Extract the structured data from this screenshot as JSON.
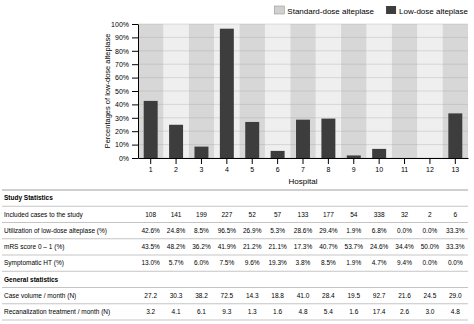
{
  "chart_data": {
    "type": "bar",
    "xlabel": "Hospital",
    "ylabel": "Percentages of low-dose alteplase",
    "categories": [
      "1",
      "2",
      "3",
      "4",
      "5",
      "6",
      "7",
      "8",
      "9",
      "10",
      "11",
      "12",
      "13"
    ],
    "series": [
      {
        "name": "Standard-dose alteplase",
        "color": "#d0d0d0",
        "type": "background"
      },
      {
        "name": "Low-dose alteplase",
        "color": "#3d3d3d",
        "values": [
          42.6,
          24.8,
          8.5,
          96.5,
          26.9,
          5.3,
          28.6,
          29.4,
          1.9,
          6.8,
          0.0,
          0.0,
          33.3
        ]
      }
    ],
    "ylim": [
      0,
      100
    ],
    "yticks": [
      {
        "value": 0,
        "label": "0%"
      },
      {
        "value": 10,
        "label": "10%"
      },
      {
        "value": 20,
        "label": "20%"
      },
      {
        "value": 30,
        "label": "30%"
      },
      {
        "value": 40,
        "label": "40%"
      },
      {
        "value": 50,
        "label": "50%"
      },
      {
        "value": 60,
        "label": "60%"
      },
      {
        "value": 70,
        "label": "70%"
      },
      {
        "value": 80,
        "label": "80%"
      },
      {
        "value": 90,
        "label": "90%"
      },
      {
        "value": 100,
        "label": "100%"
      }
    ],
    "grid": true,
    "legend": "upper right",
    "table": [
      {
        "title": "Study Statistics",
        "rows": [
          {
            "label": "Included cases to the study",
            "values": [
              "108",
              "141",
              "199",
              "227",
              "52",
              "57",
              "133",
              "177",
              "54",
              "338",
              "32",
              "2",
              "6"
            ]
          },
          {
            "label": "Utilization of low-dose alteplase (%)",
            "values": [
              "42.6%",
              "24.8%",
              "8.5%",
              "96.5%",
              "26.9%",
              "5.3%",
              "28.6%",
              "29.4%",
              "1.9%",
              "6.8%",
              "0.0%",
              "0.0%",
              "33.3%"
            ]
          },
          {
            "label": "mRS score 0 – 1 (%)",
            "values": [
              "43.5%",
              "48.2%",
              "36.2%",
              "41.9%",
              "21.2%",
              "21.1%",
              "17.3%",
              "40.7%",
              "53.7%",
              "24.6%",
              "34.4%",
              "50.0%",
              "33.3%"
            ]
          },
          {
            "label": "Symptomatic HT (%)",
            "values": [
              "13.0%",
              "5.7%",
              "6.0%",
              "7.5%",
              "9.6%",
              "19.3%",
              "3.8%",
              "8.5%",
              "1.9%",
              "4.7%",
              "9.4%",
              "0.0%",
              "0.0%"
            ]
          }
        ]
      },
      {
        "title": "General statistics",
        "rows": [
          {
            "label": "Case volume / month (N)",
            "values": [
              "27.2",
              "30.3",
              "38.2",
              "72.5",
              "14.3",
              "18.8",
              "41.0",
              "28.4",
              "19.5",
              "92.7",
              "21.6",
              "24.5",
              "29.0"
            ]
          },
          {
            "label": "Recanalization treatment / month (N)",
            "values": [
              "3.2",
              "4.1",
              "6.1",
              "9.3",
              "1.3",
              "1.6",
              "4.8",
              "5.4",
              "1.6",
              "17.4",
              "2.6",
              "3.0",
              "4.8"
            ]
          }
        ]
      }
    ]
  }
}
